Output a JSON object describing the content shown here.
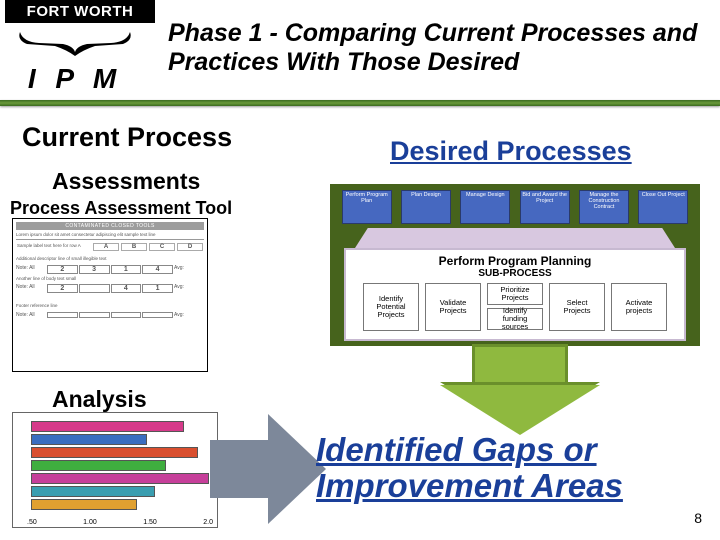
{
  "header": {
    "logo_text": "FORT WORTH",
    "program": "I P M",
    "title": "Phase 1 - Comparing Current Processes and Practices With Those Desired"
  },
  "labels": {
    "current": "Current Process",
    "assessments": "Assessments",
    "pat": "Process Assessment Tool",
    "analysis": "Analysis",
    "desired": "Desired Processes",
    "gaps": "Identified Gaps or Improvement Areas"
  },
  "slide_number": "8",
  "tool": {
    "header": "CONTAMINATED CLOSED TOOLS",
    "row_options": [
      "A",
      "B",
      "C",
      "D"
    ],
    "grade_row1": [
      "2",
      "3",
      "1",
      "4"
    ],
    "grade_row2": [
      "2",
      "4",
      "1"
    ],
    "note_label": "Note: All",
    "avg_label": "Avg:"
  },
  "chart": {
    "bars": [
      {
        "width_pct": 84,
        "color": "#d63a8a"
      },
      {
        "width_pct": 64,
        "color": "#3a6ec0"
      },
      {
        "width_pct": 92,
        "color": "#d94f2f"
      },
      {
        "width_pct": 74,
        "color": "#3fae3f"
      },
      {
        "width_pct": 98,
        "color": "#c63f9a"
      },
      {
        "width_pct": 68,
        "color": "#3a9eb0"
      },
      {
        "width_pct": 58,
        "color": "#e0a030"
      }
    ],
    "xticks": [
      ".50",
      "1.00",
      "1.50",
      "2.0"
    ]
  },
  "desired_diagram": {
    "sub_title1": "Perform Program Planning",
    "sub_title2": "SUB-PROCESS",
    "top_boxes": [
      "Perform Program Plan",
      "Plan Design",
      "Manage Design",
      "Bid and Award the Project",
      "Manage the Construction Contract",
      "Close Out Project"
    ],
    "sub_boxes": {
      "b1": "Identify Potential Projects",
      "b2": "Validate Projects",
      "b3a": "Prioritize Projects",
      "b3b": "Identify funding sources",
      "b4": "Select Projects",
      "b5": "Activate projects"
    }
  },
  "colors": {
    "green_dark": "#46631c",
    "green_arrow": "#8fb93f",
    "blue_link": "#1a3f99",
    "grey_arrow": "#7d889a"
  }
}
